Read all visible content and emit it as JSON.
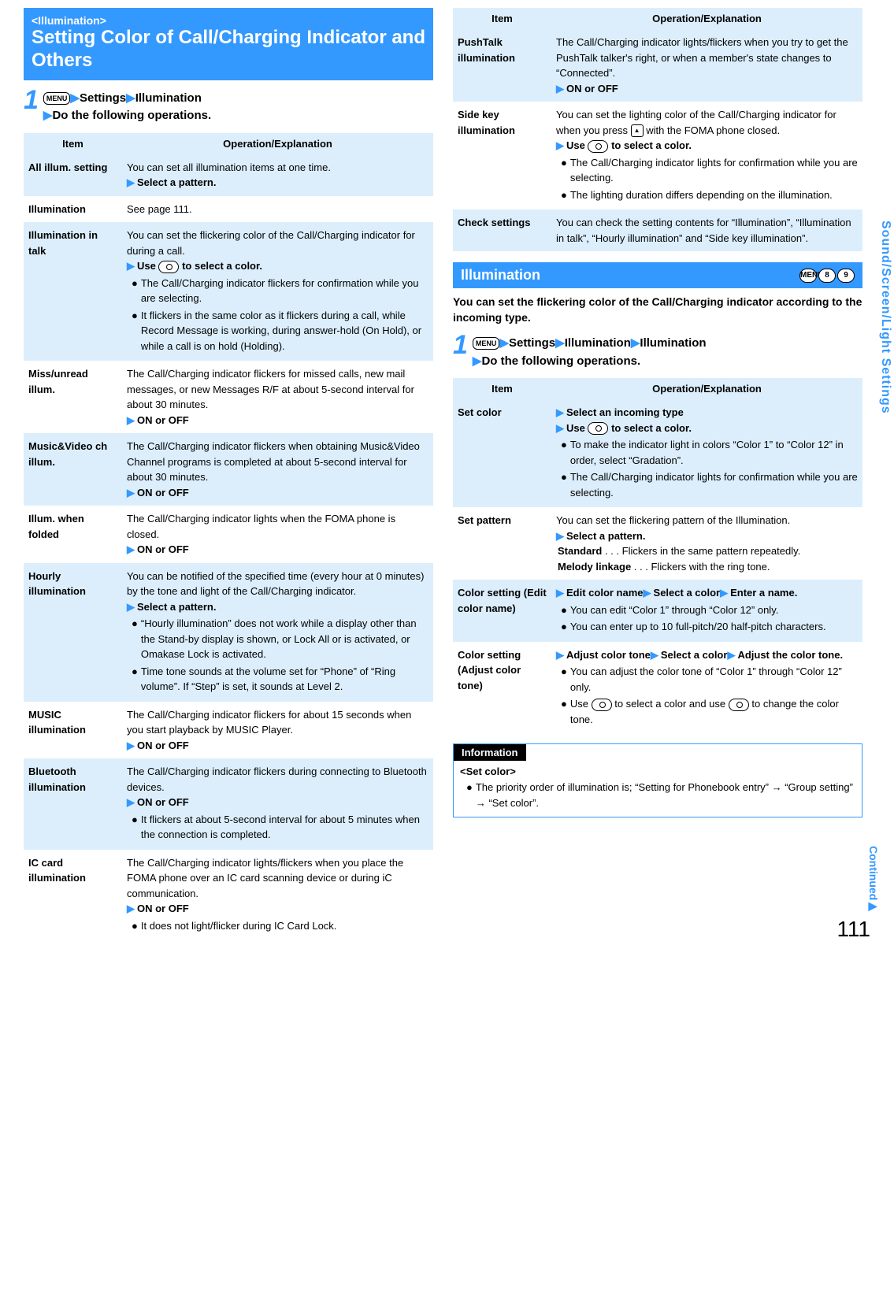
{
  "header": {
    "tag": "<Illumination>",
    "title": "Setting Color of Call/Charging Indicator and Others"
  },
  "step1": {
    "menu": "MENU",
    "s1": "Settings",
    "s2": "Illumination",
    "s3": "Do the following operations."
  },
  "leftTable": {
    "h1": "Item",
    "h2": "Operation/Explanation",
    "rows": [
      {
        "item": "All illum. setting",
        "lines": [
          "You can set all illumination items at one time."
        ],
        "action": "Select a pattern."
      },
      {
        "item": "Illumination",
        "lines": [
          "See page 111."
        ]
      },
      {
        "item": "Illumination in talk",
        "lines": [
          "You can set the flickering color of the Call/Charging indicator for during a call."
        ],
        "action": "Use [nav] to select a color.",
        "bullets": [
          "The Call/Charging indicator flickers for confirmation while you are selecting.",
          "It flickers in the same color as it flickers during a call, while Record Message is working, during answer-hold (On Hold), or while a call is on hold (Holding)."
        ]
      },
      {
        "item": "Miss/unread illum.",
        "lines": [
          "The Call/Charging indicator flickers for missed calls, new mail messages, or new Messages R/F at about 5-second interval for about 30 minutes."
        ],
        "action": "ON or OFF"
      },
      {
        "item": "Music&Video ch illum.",
        "lines": [
          "The Call/Charging indicator flickers when obtaining Music&Video Channel programs is completed at about 5-second interval for about 30 minutes."
        ],
        "action": "ON or OFF"
      },
      {
        "item": "Illum. when folded",
        "lines": [
          "The Call/Charging indicator lights when the FOMA phone is closed."
        ],
        "action": "ON or OFF"
      },
      {
        "item": "Hourly illumination",
        "lines": [
          "You can be notified of the specified time (every hour at 0 minutes) by the tone and light of the Call/Charging indicator."
        ],
        "action": "Select a pattern.",
        "bullets": [
          "“Hourly illumination” does not work while a display other than the Stand-by display is shown, or Lock All or is activated, or Omakase Lock is activated.",
          "Time tone sounds at the volume set for “Phone” of “Ring volume”. If “Step” is set, it sounds at Level 2."
        ]
      },
      {
        "item": "MUSIC illumination",
        "lines": [
          "The Call/Charging indicator flickers for about 15 seconds when you start playback by MUSIC Player."
        ],
        "action": "ON or OFF"
      },
      {
        "item": "Bluetooth illumination",
        "lines": [
          "The Call/Charging indicator flickers during connecting to Bluetooth devices."
        ],
        "action": "ON or OFF",
        "bullets": [
          "It flickers at about 5-second interval for about 5 minutes when the connection is completed."
        ]
      },
      {
        "item": "IC card illumination",
        "lines": [
          "The Call/Charging indicator lights/flickers when you place the FOMA phone over an IC card scanning device or during iC communication."
        ],
        "action": "ON or OFF",
        "bullets": [
          "It does not light/flicker during IC Card Lock."
        ]
      }
    ]
  },
  "rightTopTable": {
    "h1": "Item",
    "h2": "Operation/Explanation",
    "rows": [
      {
        "item": "PushTalk illumination",
        "lines": [
          "The Call/Charging indicator lights/flickers when you try to get the PushTalk talker's right, or when a member's state changes to “Connected”."
        ],
        "action": "ON or OFF"
      },
      {
        "item": "Side key illumination",
        "lines": [
          "You can set the lighting color of the Call/Charging indicator for when you press [up] with the FOMA phone closed."
        ],
        "action": "Use [nav] to select a color.",
        "bullets": [
          "The Call/Charging indicator lights for confirmation while you are selecting.",
          "The lighting duration differs depending on the illumination."
        ]
      },
      {
        "item": "Check settings",
        "lines": [
          "You can check the setting contents for “Illumination”, “Illumination in talk”, “Hourly illumination” and “Side key illumination”."
        ]
      }
    ]
  },
  "illumSection": {
    "title": "Illumination",
    "keys": [
      "MENU",
      "8",
      "9"
    ],
    "intro": "You can set the flickering color of the Call/Charging indicator according to the incoming type."
  },
  "step2": {
    "menu": "MENU",
    "s1": "Settings",
    "s2": "Illumination",
    "s3": "Illumination",
    "s4": "Do the following operations."
  },
  "rightBottomTable": {
    "h1": "Item",
    "h2": "Operation/Explanation",
    "rows": [
      {
        "item": "Set color",
        "action1": "Select an incoming type",
        "action2": "Use [nav] to select a color.",
        "bullets": [
          "To make the indicator light in colors “Color 1” to “Color 12” in order, select “Gradation”.",
          "The Call/Charging indicator lights for confirmation while you are selecting."
        ]
      },
      {
        "item": "Set pattern",
        "lines": [
          "You can set the flickering pattern of the Illumination."
        ],
        "action": "Select a pattern.",
        "patterns": [
          {
            "name": "Standard",
            "desc": "Flickers in the same pattern repeatedly."
          },
          {
            "name": "Melody linkage",
            "desc": "Flickers with the ring tone."
          }
        ]
      },
      {
        "item": "Color setting (Edit color name)",
        "chain": [
          "Edit color name",
          "Select a color",
          "Enter a name."
        ],
        "bullets": [
          "You can edit “Color 1” through “Color 12” only.",
          "You can enter up to 10 full-pitch/20 half-pitch characters."
        ]
      },
      {
        "item": "Color setting (Adjust color tone)",
        "chain": [
          "Adjust color tone",
          "Select a color",
          "Adjust the color tone."
        ],
        "bullets": [
          "You can adjust the color tone of “Color 1” through “Color 12” only.",
          "Use [nav] to select a color and use [nav] to change the color tone."
        ]
      }
    ]
  },
  "infoBox": {
    "label": "Information",
    "sub": "<Set color>",
    "bullet": "The priority order of illumination is; “Setting for Phonebook entry” → “Group setting” → “Set color”."
  },
  "sideTab": "Sound/Screen/Light Settings",
  "continued": "Continued",
  "pageNum": "111"
}
